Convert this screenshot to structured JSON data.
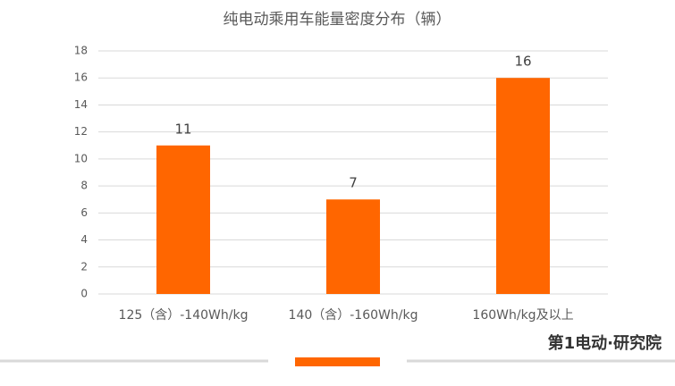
{
  "chart_data": {
    "type": "bar",
    "title": "纯电动乘用车能量密度分布（辆）",
    "categories": [
      "125（含）-140Wh/kg",
      "140（含）-160Wh/kg",
      "160Wh/kg及以上"
    ],
    "values": [
      11,
      7,
      16
    ],
    "color": "#ff6600",
    "ylim": [
      0,
      18
    ],
    "yticks": [
      0,
      2,
      4,
      6,
      8,
      10,
      12,
      14,
      16,
      18
    ],
    "grid": true,
    "footer_logo": "第1电动·研究院"
  }
}
